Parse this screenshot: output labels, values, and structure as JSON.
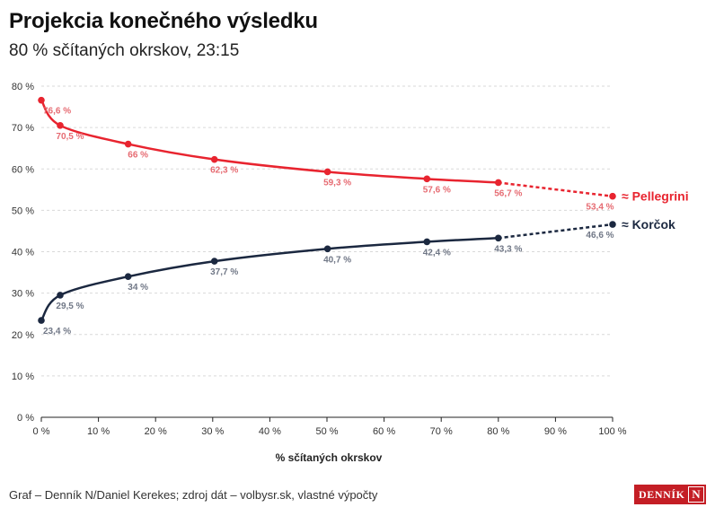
{
  "header": {
    "title": "Projekcia konečného výsledku",
    "subtitle": "80 % sčítaných okrskov, 23:15"
  },
  "footer": {
    "source": "Graf – Denník N/Daniel Kerekes; zdroj dát – volbysr.sk, vlastné výpočty",
    "logo_text": "DENNÍK",
    "logo_mark": "N"
  },
  "chart_data": {
    "type": "line",
    "xlabel": "% sčítaných okrskov",
    "ylabel": "",
    "xlim": [
      0,
      100
    ],
    "ylim": [
      0,
      80
    ],
    "x_ticks": [
      0,
      10,
      20,
      30,
      40,
      50,
      60,
      70,
      80,
      90,
      100
    ],
    "y_ticks": [
      0,
      10,
      20,
      30,
      40,
      50,
      60,
      70,
      80
    ],
    "tick_suffix": " %",
    "grid": true,
    "projection_from_x": 80,
    "series": [
      {
        "name": "≈ Pellegrini",
        "color": "#e8242f",
        "x": [
          0,
          3.3,
          15.2,
          30.3,
          50.1,
          67.5,
          80,
          100
        ],
        "y": [
          76.6,
          70.5,
          66,
          62.3,
          59.3,
          57.6,
          56.7,
          53.4
        ],
        "labels": [
          "76,6 %",
          "70,5 %",
          "66 %",
          "62,3 %",
          "59,3 %",
          "57,6 %",
          "56,7 %",
          "53,4 %"
        ]
      },
      {
        "name": "≈ Korčok",
        "color": "#1b2840",
        "x": [
          0,
          3.3,
          15.2,
          30.3,
          50.1,
          67.5,
          80,
          100
        ],
        "y": [
          23.4,
          29.5,
          34,
          37.7,
          40.7,
          42.4,
          43.3,
          46.6
        ],
        "labels": [
          "23,4 %",
          "29,5 %",
          "34 %",
          "37,7 %",
          "40,7 %",
          "42,4 %",
          "43,3 %",
          "46,6 %"
        ]
      }
    ]
  }
}
